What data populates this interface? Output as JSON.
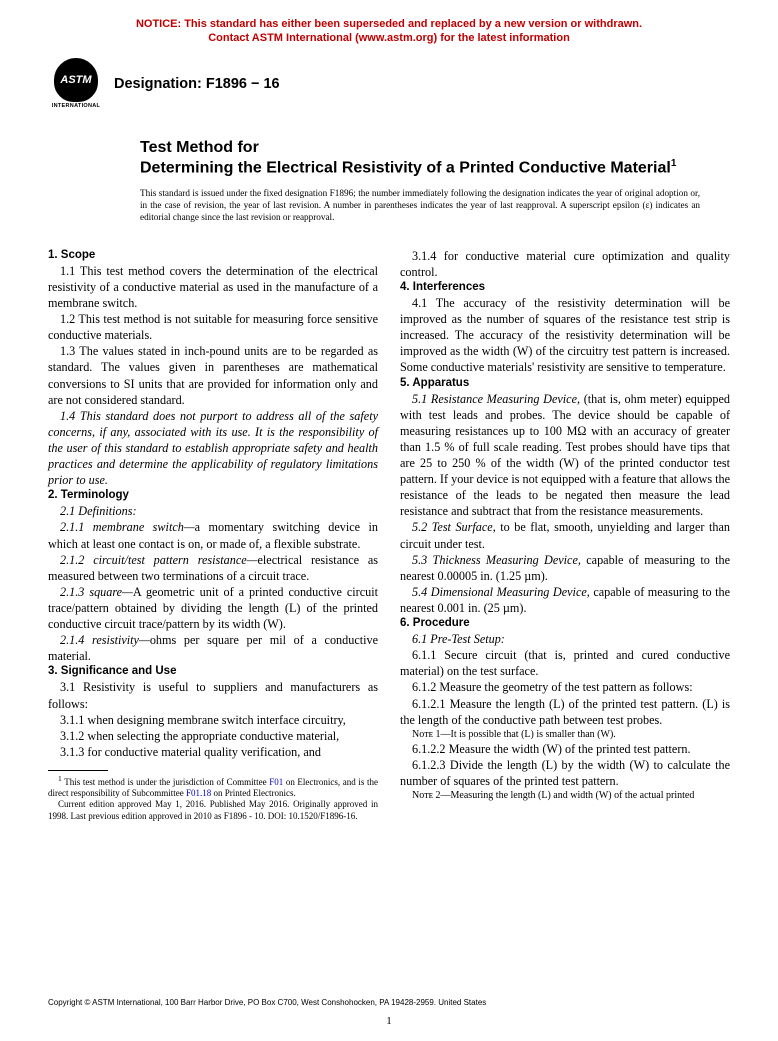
{
  "notice": {
    "line1": "NOTICE: This standard has either been superseded and replaced by a new version or withdrawn.",
    "line2": "Contact ASTM International (www.astm.org) for the latest information",
    "color": "#c00000"
  },
  "logo": {
    "text": "ASTM",
    "subtext": "INTERNATIONAL"
  },
  "designation": {
    "label": "Designation: ",
    "value": "F1896 − 16"
  },
  "title": {
    "pre": "Test Method for",
    "main": "Determining the Electrical Resistivity of a Printed Conductive Material",
    "super": "1"
  },
  "standard_note": "This standard is issued under the fixed designation F1896; the number immediately following the designation indicates the year of original adoption or, in the case of revision, the year of last revision. A number in parentheses indicates the year of last reapproval. A superscript epsilon (ε) indicates an editorial change since the last revision or reapproval.",
  "sections": {
    "s1": {
      "head": "1. Scope",
      "p1": "1.1 This test method covers the determination of the electrical resistivity of a conductive material as used in the manufacture of a membrane switch.",
      "p2": "1.2 This test method is not suitable for measuring force sensitive conductive materials.",
      "p3": "1.3 The values stated in inch-pound units are to be regarded as standard. The values given in parentheses are mathematical conversions to SI units that are provided for information only and are not considered standard.",
      "p4": "1.4 This standard does not purport to address all of the safety concerns, if any, associated with its use. It is the responsibility of the user of this standard to establish appropriate safety and health practices and determine the applicability of regulatory limitations prior to use."
    },
    "s2": {
      "head": "2. Terminology",
      "p1": "2.1 Definitions:",
      "p2_lead": "2.1.1 membrane switch—",
      "p2_body": "a momentary switching device in which at least one contact is on, or made of, a flexible substrate.",
      "p3_lead": "2.1.2 circuit/test pattern resistance—",
      "p3_body": "electrical resistance as measured between two terminations of a circuit trace.",
      "p4_lead": "2.1.3 square—",
      "p4_body": "A geometric unit of a printed conductive circuit trace/pattern obtained by dividing the length (L) of the printed conductive circuit trace/pattern by its width (W).",
      "p5_lead": "2.1.4 resistivity—",
      "p5_body": "ohms per square per mil of a conductive material."
    },
    "s3": {
      "head": "3. Significance and Use",
      "p1": "3.1 Resistivity is useful to suppliers and manufacturers as follows:",
      "p2": "3.1.1 when designing membrane switch interface circuitry,",
      "p3": "3.1.2 when selecting the appropriate conductive material,",
      "p4": "3.1.3 for conductive material quality verification, and",
      "p5": "3.1.4 for conductive material cure optimization and quality control."
    },
    "s4": {
      "head": "4. Interferences",
      "p1": "4.1 The accuracy of the resistivity determination will be improved as the number of squares of the resistance test strip is increased. The accuracy of the resistivity determination will be improved as the width (W) of the circuitry test pattern is increased. Some conductive materials' resistivity are sensitive to temperature."
    },
    "s5": {
      "head": "5. Apparatus",
      "p1_lead": "5.1 Resistance Measuring Device,",
      "p1_body": " (that is, ohm meter) equipped with test leads and probes. The device should be capable of measuring resistances up to 100 MΩ with an accuracy of greater than 1.5 % of full scale reading. Test probes should have tips that are 25 to 250 % of the width (W) of the printed conductor test pattern. If your device is not equipped with a feature that allows the resistance of the leads to be negated then measure the lead resistance and subtract that from the resistance measurements.",
      "p2_lead": "5.2 Test Surface,",
      "p2_body": " to be flat, smooth, unyielding and larger than circuit under test.",
      "p3_lead": "5.3 Thickness Measuring Device,",
      "p3_body": " capable of measuring to the nearest 0.00005 in. (1.25 µm).",
      "p4_lead": "5.4 Dimensional Measuring Device,",
      "p4_body": " capable of measuring to the nearest 0.001 in. (25 µm)."
    },
    "s6": {
      "head": "6. Procedure",
      "p1": "6.1 Pre-Test Setup:",
      "p2": "6.1.1 Secure circuit (that is, printed and cured conductive material) on the test surface.",
      "p3": "6.1.2 Measure the geometry of the test pattern as follows:",
      "p4": "6.1.2.1 Measure the length (L) of the printed test pattern. (L) is the length of the conductive path between test probes.",
      "n1": "Nᴏᴛᴇ 1—It is possible that (L) is smaller than (W).",
      "p5": "6.1.2.2 Measure the width (W) of the printed test pattern.",
      "p6": "6.1.2.3 Divide the length (L) by the width (W) to calculate the number of squares of the printed test pattern.",
      "n2": "Nᴏᴛᴇ 2—Measuring the length (L) and width (W) of the actual printed"
    }
  },
  "footnote": {
    "sup": "1",
    "text1": " This test method is under the jurisdiction of Committee ",
    "link1": "F01",
    "text2": " on Electronics, and is the direct responsibility of Subcommittee ",
    "link2": "F01.18",
    "text3": " on Printed Electronics.",
    "para2": "Current edition approved May 1, 2016. Published May 2016. Originally approved in 1998. Last previous edition approved in 2010 as F1896 - 10. DOI: 10.1520/F1896-16."
  },
  "copyright": "Copyright © ASTM International, 100 Barr Harbor Drive, PO Box C700, West Conshohocken, PA 19428-2959. United States",
  "pagenum": "1"
}
